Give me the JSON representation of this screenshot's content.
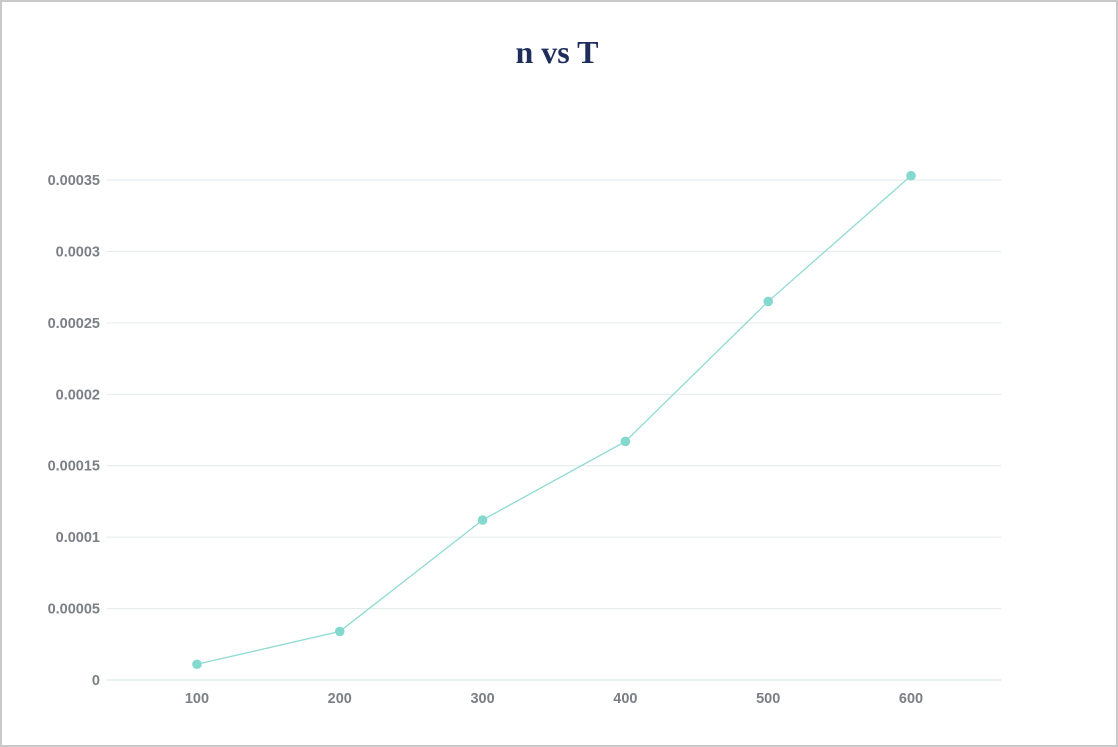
{
  "chart_data": {
    "type": "line",
    "title": "n vs T",
    "xlabel": "",
    "ylabel": "",
    "x": [
      100,
      200,
      300,
      400,
      500,
      600
    ],
    "series": [
      {
        "values": [
          1.1e-05,
          3.4e-05,
          0.000112,
          0.000167,
          0.000265,
          0.000353
        ]
      }
    ],
    "x_ticks": [
      "100",
      "200",
      "300",
      "400",
      "500",
      "600"
    ],
    "y_ticks": [
      "0",
      "0.00005",
      "0.0001",
      "0.00015",
      "0.0002",
      "0.00025",
      "0.0003",
      "0.00035"
    ],
    "y_tick_values": [
      0,
      5e-05,
      0.0001,
      0.00015,
      0.0002,
      0.00025,
      0.0003,
      0.00035
    ],
    "xlim": [
      37,
      663
    ],
    "ylim": [
      0,
      0.00035
    ],
    "grid": "horizontal",
    "legend": "none",
    "colors": {
      "line": "#8fdad2",
      "marker": "#84d9cf",
      "grid": "#e3eaec",
      "title": "#1f2d5a",
      "tick": "#7b7f86"
    }
  }
}
